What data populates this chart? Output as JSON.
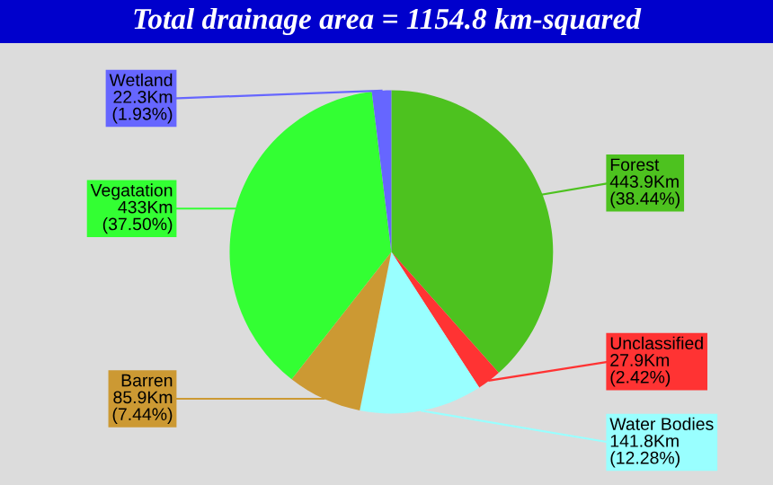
{
  "chart_data": {
    "type": "pie",
    "title": "Total drainage area = 1154.8 km-squared",
    "categories": [
      "Forest",
      "Unclassified",
      "Water Bodies",
      "Barren",
      "Vegatation",
      "Wetland"
    ],
    "values": [
      443.9,
      27.9,
      141.8,
      85.9,
      433,
      22.3
    ],
    "colors": [
      "#4dc21f",
      "#ff3333",
      "#99ffff",
      "#cc9933",
      "#33ff33",
      "#6666ff"
    ],
    "value_labels": [
      "443.9Km\n(38.44%)",
      "27.9Km\n(2.42%)",
      "141.8Km\n(12.28%)",
      "85.9Km\n(7.44%)",
      "433Km\n(37.50%)",
      "22.3Km\n(1.93%)"
    ]
  }
}
